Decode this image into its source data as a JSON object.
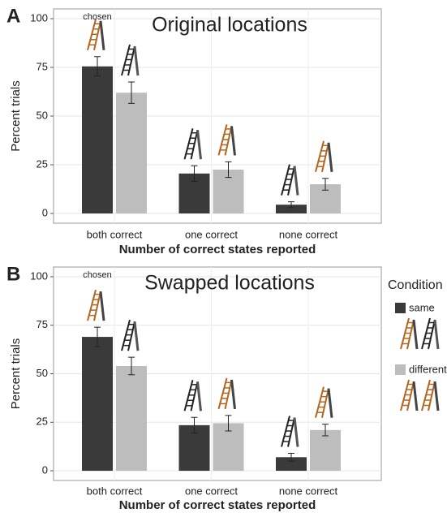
{
  "chart_data": [
    {
      "type": "bar",
      "panel": "A",
      "title": "Original locations",
      "annotation": "chosen",
      "x_label": "Number of correct states reported",
      "y_label": "Percent trials",
      "categories": [
        "both correct",
        "one correct",
        "none correct"
      ],
      "series": [
        {
          "color": "#3a3a3a",
          "values": [
            75.5,
            20.5,
            4.5
          ],
          "errors": [
            5,
            4,
            1.5
          ]
        },
        {
          "color": "#bdbdbd",
          "values": [
            62,
            22.5,
            15
          ],
          "errors": [
            5.5,
            4,
            3
          ]
        }
      ],
      "ylim": [
        -5,
        105
      ],
      "yticks": [
        0,
        25,
        50,
        75,
        100
      ],
      "grid": true
    },
    {
      "type": "bar",
      "panel": "B",
      "title": "Swapped locations",
      "annotation": "chosen",
      "x_label": "Number of correct states reported",
      "y_label": "Percent trials",
      "categories": [
        "both correct",
        "one correct",
        "none correct"
      ],
      "series": [
        {
          "name": "same",
          "color": "#3a3a3a",
          "values": [
            69,
            23.5,
            7
          ],
          "errors": [
            5,
            4,
            2
          ]
        },
        {
          "name": "different",
          "color": "#bdbdbd",
          "values": [
            54,
            24.5,
            21
          ],
          "errors": [
            4.5,
            4,
            3
          ]
        }
      ],
      "ylim": [
        -5,
        105
      ],
      "yticks": [
        0,
        25,
        50,
        75,
        100
      ],
      "grid": true,
      "legend_title": "Condition",
      "legend": "right"
    }
  ]
}
